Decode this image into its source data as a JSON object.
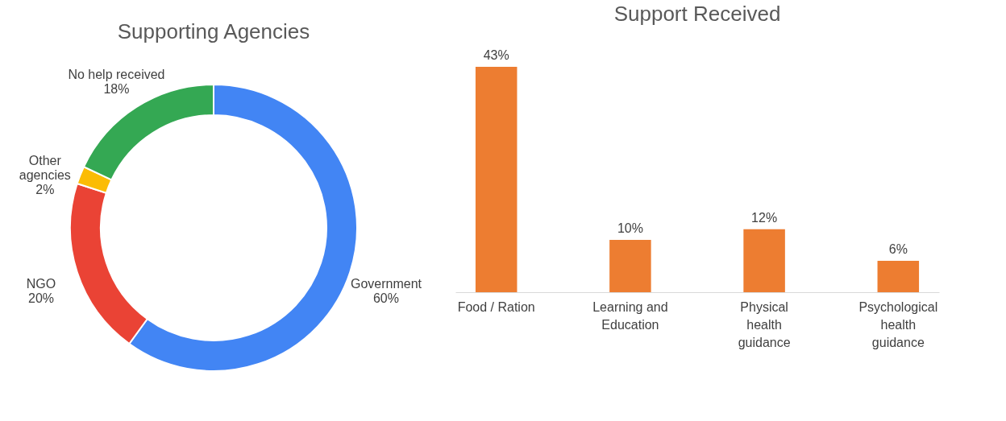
{
  "chart_data": [
    {
      "type": "donut",
      "title": "Supporting Agencies",
      "categories": [
        "Government",
        "NGO",
        "Other\nagencies",
        "No help received"
      ],
      "values": [
        60,
        20,
        2,
        18
      ],
      "colors": [
        "#4285f4",
        "#ea4335",
        "#fbbc04",
        "#34a853"
      ],
      "value_labels": [
        "60%",
        "20%",
        "2%",
        "18%"
      ],
      "legend": false
    },
    {
      "type": "bar",
      "title": "Support Received",
      "categories": [
        "Food / Ration",
        "Learning and\nEducation",
        "Physical\nhealth\nguidance",
        "Psychological\nhealth\nguidance"
      ],
      "values": [
        43,
        10,
        12,
        6
      ],
      "color": "#ed7d31",
      "value_labels": [
        "43%",
        "10%",
        "12%",
        "6%"
      ],
      "grid": false
    }
  ]
}
